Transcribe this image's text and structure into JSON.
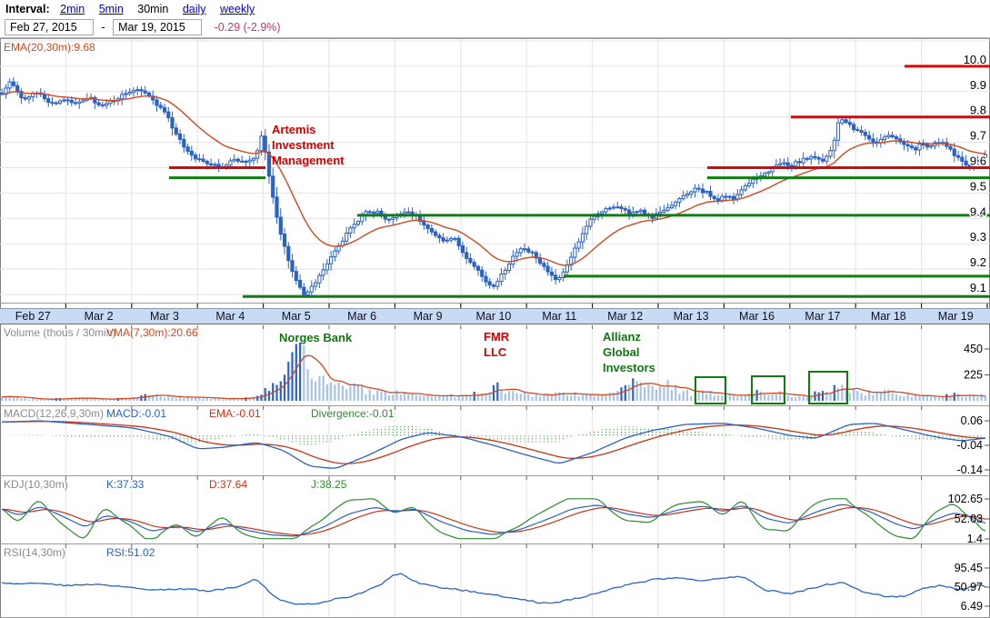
{
  "toolbar": {
    "interval_label": "Interval:",
    "intervals": [
      {
        "label": "2min",
        "selected": false
      },
      {
        "label": "5min",
        "selected": false
      },
      {
        "label": "30min",
        "selected": true
      },
      {
        "label": "daily",
        "selected": false
      },
      {
        "label": "weekly",
        "selected": false
      }
    ],
    "date_from": "Feb 27, 2015",
    "date_separator": "-",
    "date_to": "Mar 19, 2015",
    "change": "-0.29 (-2.9%)"
  },
  "colors": {
    "candle": "#2a62c6",
    "volume_light": "#a9c3e8",
    "volume_dark": "#2a62c6",
    "ema": "#d2491d",
    "macd_line": "#2a62c6",
    "signal_line": "#cc3311",
    "divergence": "#2e8b2e",
    "kdj_k": "#2a62c6",
    "kdj_d": "#cc3311",
    "kdj_j": "#2e8b2e",
    "rsi_line": "#2a62c6",
    "red_level": "#e60000",
    "green_level": "#0f7d0f",
    "grid": "#e3e3e6",
    "panel_border": "#9a9a9a",
    "tick": "#444444",
    "axis_text": "#000000"
  },
  "chart_data": {
    "type": "candlestick+indicators",
    "x_labels": [
      "Feb 27",
      "Mar 2",
      "Mar 3",
      "Mar 4",
      "Mar 5",
      "Mar 6",
      "Mar 9",
      "Mar 10",
      "Mar 11",
      "Mar 12",
      "Mar 13",
      "Mar 16",
      "Mar 17",
      "Mar 18",
      "Mar 19"
    ],
    "bars_per_day": 17,
    "price": {
      "ema_label": "EMA(20,30m):9.68",
      "y_ticks": [
        [
          "10.0",
          10.0
        ],
        [
          "9.9",
          9.9
        ],
        [
          "9.8",
          9.8
        ],
        [
          "9.7",
          9.7
        ],
        [
          "9.6",
          9.6
        ],
        [
          "9.5",
          9.5
        ],
        [
          "9.4",
          9.4
        ],
        [
          "9.3",
          9.3
        ],
        [
          "9.2",
          9.2
        ],
        [
          "9.1",
          9.1
        ]
      ],
      "ylim": [
        9.05,
        10.1
      ],
      "anchors": [
        [
          0,
          9.87
        ],
        [
          0.15,
          9.94
        ],
        [
          0.35,
          9.87
        ],
        [
          0.55,
          9.9
        ],
        [
          0.75,
          9.85
        ],
        [
          0.95,
          9.87
        ],
        [
          1.15,
          9.86
        ],
        [
          1.35,
          9.88
        ],
        [
          1.55,
          9.84
        ],
        [
          1.75,
          9.87
        ],
        [
          1.95,
          9.9
        ],
        [
          2.1,
          9.91
        ],
        [
          2.3,
          9.87
        ],
        [
          2.5,
          9.82
        ],
        [
          2.7,
          9.72
        ],
        [
          2.9,
          9.65
        ],
        [
          3.0,
          9.63
        ],
        [
          3.15,
          9.62
        ],
        [
          3.35,
          9.6
        ],
        [
          3.55,
          9.63
        ],
        [
          3.75,
          9.62
        ],
        [
          3.9,
          9.65
        ],
        [
          3.98,
          9.74
        ],
        [
          4.1,
          9.55
        ],
        [
          4.25,
          9.35
        ],
        [
          4.45,
          9.18
        ],
        [
          4.6,
          9.1
        ],
        [
          4.75,
          9.13
        ],
        [
          4.95,
          9.22
        ],
        [
          5.15,
          9.29
        ],
        [
          5.35,
          9.37
        ],
        [
          5.55,
          9.42
        ],
        [
          5.75,
          9.43
        ],
        [
          5.9,
          9.39
        ],
        [
          5.98,
          9.4
        ],
        [
          6.15,
          9.43
        ],
        [
          6.35,
          9.4
        ],
        [
          6.55,
          9.35
        ],
        [
          6.75,
          9.31
        ],
        [
          6.9,
          9.33
        ],
        [
          6.98,
          9.28
        ],
        [
          7.15,
          9.23
        ],
        [
          7.35,
          9.16
        ],
        [
          7.5,
          9.13
        ],
        [
          7.65,
          9.19
        ],
        [
          7.85,
          9.27
        ],
        [
          7.98,
          9.28
        ],
        [
          8.1,
          9.26
        ],
        [
          8.3,
          9.2
        ],
        [
          8.45,
          9.15
        ],
        [
          8.65,
          9.23
        ],
        [
          8.85,
          9.34
        ],
        [
          8.98,
          9.4
        ],
        [
          9.15,
          9.43
        ],
        [
          9.35,
          9.45
        ],
        [
          9.55,
          9.42
        ],
        [
          9.75,
          9.43
        ],
        [
          9.9,
          9.4
        ],
        [
          9.98,
          9.42
        ],
        [
          10.15,
          9.44
        ],
        [
          10.35,
          9.48
        ],
        [
          10.55,
          9.52
        ],
        [
          10.75,
          9.5
        ],
        [
          10.9,
          9.47
        ],
        [
          10.98,
          9.49
        ],
        [
          11.15,
          9.48
        ],
        [
          11.35,
          9.53
        ],
        [
          11.55,
          9.57
        ],
        [
          11.75,
          9.6
        ],
        [
          11.9,
          9.62
        ],
        [
          11.98,
          9.6
        ],
        [
          12.1,
          9.62
        ],
        [
          12.3,
          9.64
        ],
        [
          12.5,
          9.63
        ],
        [
          12.65,
          9.68
        ],
        [
          12.75,
          9.8
        ],
        [
          12.9,
          9.77
        ],
        [
          12.98,
          9.75
        ],
        [
          13.1,
          9.74
        ],
        [
          13.3,
          9.7
        ],
        [
          13.5,
          9.73
        ],
        [
          13.7,
          9.7
        ],
        [
          13.9,
          9.67
        ],
        [
          13.98,
          9.7
        ],
        [
          14.1,
          9.68
        ],
        [
          14.3,
          9.71
        ],
        [
          14.5,
          9.65
        ],
        [
          14.7,
          9.61
        ],
        [
          14.85,
          9.63
        ],
        [
          15,
          9.65
        ]
      ],
      "red_levels": [
        [
          9.6,
          186,
          292
        ],
        [
          9.6,
          778,
          1089
        ],
        [
          9.8,
          870,
          1089
        ],
        [
          10.0,
          995,
          1089
        ]
      ],
      "green_levels": [
        [
          9.578,
          186,
          292
        ],
        [
          9.578,
          778,
          1089
        ],
        [
          9.43,
          393,
          1089
        ],
        [
          9.19,
          620,
          1089
        ],
        [
          9.11,
          267,
          1089
        ]
      ]
    },
    "volume": {
      "label": "Volume (thous / 30min)",
      "vma_label": "VMA(7,30m):20.66",
      "y_ticks": [
        [
          "450",
          450
        ],
        [
          "225",
          225
        ]
      ],
      "anchors": [
        [
          0,
          30
        ],
        [
          0.2,
          45
        ],
        [
          0.4,
          18
        ],
        [
          0.6,
          12
        ],
        [
          0.8,
          15
        ],
        [
          1.0,
          22
        ],
        [
          1.2,
          28
        ],
        [
          1.4,
          15
        ],
        [
          1.6,
          12
        ],
        [
          1.8,
          18
        ],
        [
          2.0,
          25
        ],
        [
          2.2,
          65
        ],
        [
          2.4,
          45
        ],
        [
          2.6,
          30
        ],
        [
          2.8,
          35
        ],
        [
          3.0,
          25
        ],
        [
          3.2,
          22
        ],
        [
          3.4,
          18
        ],
        [
          3.6,
          20
        ],
        [
          3.8,
          28
        ],
        [
          3.98,
          50
        ],
        [
          4.1,
          130
        ],
        [
          4.3,
          260
        ],
        [
          4.5,
          430
        ],
        [
          4.65,
          320
        ],
        [
          4.8,
          230
        ],
        [
          4.98,
          170
        ],
        [
          5.15,
          150
        ],
        [
          5.35,
          115
        ],
        [
          5.55,
          85
        ],
        [
          5.75,
          65
        ],
        [
          5.98,
          75
        ],
        [
          6.2,
          50
        ],
        [
          6.4,
          40
        ],
        [
          6.6,
          33
        ],
        [
          6.8,
          45
        ],
        [
          6.98,
          33
        ],
        [
          7.2,
          60
        ],
        [
          7.4,
          85
        ],
        [
          7.55,
          120
        ],
        [
          7.75,
          80
        ],
        [
          7.98,
          55
        ],
        [
          8.2,
          45
        ],
        [
          8.4,
          60
        ],
        [
          8.6,
          70
        ],
        [
          8.8,
          50
        ],
        [
          8.98,
          48
        ],
        [
          9.1,
          60
        ],
        [
          9.3,
          80
        ],
        [
          9.6,
          140
        ],
        [
          9.8,
          160
        ],
        [
          9.98,
          85
        ],
        [
          10.05,
          180
        ],
        [
          10.25,
          100
        ],
        [
          10.5,
          60
        ],
        [
          10.8,
          70
        ],
        [
          10.98,
          55
        ],
        [
          11.15,
          45
        ],
        [
          11.35,
          60
        ],
        [
          11.55,
          90
        ],
        [
          11.75,
          70
        ],
        [
          11.98,
          50
        ],
        [
          12.15,
          40
        ],
        [
          12.4,
          60
        ],
        [
          12.6,
          80
        ],
        [
          12.78,
          150
        ],
        [
          12.98,
          70
        ],
        [
          13.15,
          60
        ],
        [
          13.35,
          90
        ],
        [
          13.6,
          60
        ],
        [
          13.85,
          45
        ],
        [
          13.98,
          40
        ],
        [
          14.2,
          30
        ],
        [
          14.5,
          50
        ],
        [
          14.8,
          35
        ],
        [
          15,
          55
        ]
      ],
      "highlight_boxes": [
        [
          765,
          415,
          33,
          29
        ],
        [
          827,
          414,
          36,
          30
        ],
        [
          890,
          409,
          42,
          35
        ]
      ]
    },
    "macd": {
      "label": "MACD(12,26,9,30m)",
      "macd_value": "MACD:-0.01",
      "ema_value": "EMA:-0.01",
      "div_value": "Divergence:-0.01",
      "y_ticks": [
        [
          "0.06",
          0.06
        ],
        [
          "-0.04",
          -0.04
        ],
        [
          "-0.14",
          -0.14
        ]
      ],
      "anchors": [
        [
          0,
          0.055
        ],
        [
          0.6,
          0.06
        ],
        [
          1.2,
          0.048
        ],
        [
          2.0,
          0.032
        ],
        [
          2.6,
          -0.005
        ],
        [
          3.0,
          -0.055
        ],
        [
          3.4,
          -0.048
        ],
        [
          3.9,
          -0.028
        ],
        [
          4.3,
          -0.06
        ],
        [
          4.7,
          -0.125
        ],
        [
          5.1,
          -0.135
        ],
        [
          5.6,
          -0.08
        ],
        [
          6.1,
          -0.015
        ],
        [
          6.5,
          0.012
        ],
        [
          7.0,
          -0.005
        ],
        [
          7.5,
          -0.04
        ],
        [
          8.0,
          -0.08
        ],
        [
          8.5,
          -0.115
        ],
        [
          9.0,
          -0.07
        ],
        [
          9.5,
          -0.01
        ],
        [
          9.9,
          0.02
        ],
        [
          10.4,
          0.045
        ],
        [
          11.0,
          0.05
        ],
        [
          11.5,
          0.03
        ],
        [
          12.0,
          0.0
        ],
        [
          12.4,
          -0.012
        ],
        [
          12.9,
          0.045
        ],
        [
          13.3,
          0.05
        ],
        [
          13.8,
          0.02
        ],
        [
          14.2,
          -0.005
        ],
        [
          14.6,
          -0.022
        ],
        [
          15,
          -0.01
        ]
      ]
    },
    "kdj": {
      "label": "KDJ(10,30m)",
      "k_value": "K:37.33",
      "d_value": "D:37.64",
      "j_value": "J:38.25",
      "y_ticks": [
        [
          "102.65",
          102.65
        ],
        [
          "52.03",
          52.03
        ],
        [
          "1.4",
          1.4
        ]
      ],
      "k_anchors": [
        [
          0,
          80
        ],
        [
          0.3,
          60
        ],
        [
          0.6,
          85
        ],
        [
          1.0,
          55
        ],
        [
          1.3,
          30
        ],
        [
          1.6,
          62
        ],
        [
          2.0,
          45
        ],
        [
          2.3,
          20
        ],
        [
          2.7,
          35
        ],
        [
          3.0,
          18
        ],
        [
          3.4,
          42
        ],
        [
          3.7,
          25
        ],
        [
          4.1,
          12
        ],
        [
          4.5,
          8
        ],
        [
          4.9,
          30
        ],
        [
          5.3,
          65
        ],
        [
          5.7,
          82
        ],
        [
          6.0,
          70
        ],
        [
          6.3,
          78
        ],
        [
          6.7,
          45
        ],
        [
          7.1,
          22
        ],
        [
          7.5,
          12
        ],
        [
          7.9,
          25
        ],
        [
          8.3,
          50
        ],
        [
          8.7,
          78
        ],
        [
          9.1,
          88
        ],
        [
          9.5,
          65
        ],
        [
          9.9,
          55
        ],
        [
          10.3,
          75
        ],
        [
          10.7,
          85
        ],
        [
          11.0,
          70
        ],
        [
          11.3,
          88
        ],
        [
          11.6,
          55
        ],
        [
          12.0,
          40
        ],
        [
          12.4,
          70
        ],
        [
          12.8,
          90
        ],
        [
          13.2,
          72
        ],
        [
          13.6,
          40
        ],
        [
          13.9,
          25
        ],
        [
          14.2,
          50
        ],
        [
          14.5,
          68
        ],
        [
          14.8,
          55
        ],
        [
          15,
          37
        ]
      ]
    },
    "rsi": {
      "label": "RSI(14,30m)",
      "value": "RSI:51.02",
      "y_ticks": [
        [
          "95.45",
          95.45
        ],
        [
          "50.97",
          50.97
        ],
        [
          "6.49",
          6.49
        ]
      ],
      "anchors": [
        [
          0,
          62
        ],
        [
          0.3,
          58
        ],
        [
          0.7,
          60
        ],
        [
          1.0,
          55
        ],
        [
          1.5,
          57
        ],
        [
          2.0,
          50
        ],
        [
          2.4,
          44
        ],
        [
          2.8,
          47
        ],
        [
          3.2,
          42
        ],
        [
          3.6,
          52
        ],
        [
          3.9,
          72
        ],
        [
          4.15,
          28
        ],
        [
          4.4,
          14
        ],
        [
          4.7,
          10
        ],
        [
          5.0,
          20
        ],
        [
          5.4,
          32
        ],
        [
          5.8,
          58
        ],
        [
          6.05,
          86
        ],
        [
          6.3,
          62
        ],
        [
          6.7,
          50
        ],
        [
          7.1,
          42
        ],
        [
          7.5,
          33
        ],
        [
          7.9,
          24
        ],
        [
          8.3,
          12
        ],
        [
          8.7,
          22
        ],
        [
          9.1,
          38
        ],
        [
          9.5,
          55
        ],
        [
          9.9,
          68
        ],
        [
          10.3,
          74
        ],
        [
          10.7,
          66
        ],
        [
          11.0,
          72
        ],
        [
          11.3,
          77
        ],
        [
          11.6,
          45
        ],
        [
          12.0,
          35
        ],
        [
          12.5,
          55
        ],
        [
          12.8,
          62
        ],
        [
          13.1,
          40
        ],
        [
          13.4,
          30
        ],
        [
          13.7,
          28
        ],
        [
          14.0,
          46
        ],
        [
          14.3,
          56
        ],
        [
          14.6,
          44
        ],
        [
          14.85,
          56
        ],
        [
          15,
          51
        ]
      ]
    },
    "annotations": {
      "artemis": {
        "text": "Artemis\nInvestment\nManagement"
      },
      "norges": {
        "text": "Norges Bank"
      },
      "fmr": {
        "text": "FMR\nLLC"
      },
      "allianz": {
        "text": "Allianz\nGlobal\nInvestors"
      }
    }
  }
}
